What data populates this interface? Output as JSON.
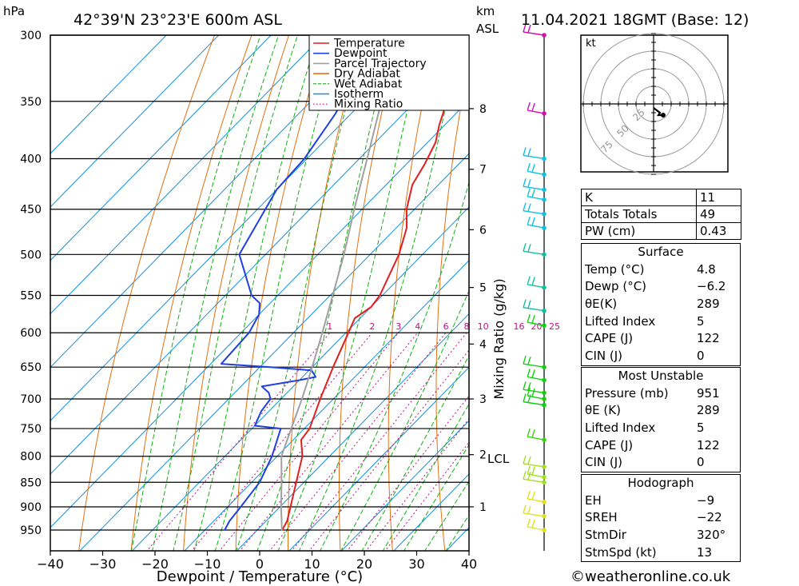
{
  "header": {
    "hpa_unit": "hPa",
    "location": "42°39'N 23°23'E 600m ASL",
    "km_unit": "km",
    "asl": "ASL",
    "datetime": "11.04.2021 18GMT (Base: 12)"
  },
  "footer": {
    "copyright": "©weatheronline.co.uk"
  },
  "chart_data": {
    "type": "line",
    "title": "42°39'N 23°23'E 600m ASL",
    "xlabel": "Dewpoint / Temperature (°C)",
    "ylabel": "hPa",
    "right_label": "Mixing Ratio (g/kg)",
    "xlim": [
      -40,
      40
    ],
    "ylim": [
      300,
      950
    ],
    "x_ticks": [
      -40,
      -30,
      -20,
      -10,
      0,
      10,
      20,
      30,
      40
    ],
    "x_tick_labels": [
      "−40",
      "−30",
      "−20",
      "−10",
      "0",
      "10",
      "20",
      "30",
      "40"
    ],
    "pressure_levels": [
      300,
      350,
      400,
      450,
      500,
      550,
      600,
      650,
      700,
      750,
      800,
      850,
      900,
      950
    ],
    "km_ticks": [
      {
        "km": 1,
        "p": 900
      },
      {
        "km": 2,
        "p": 797
      },
      {
        "km": 3,
        "p": 700
      },
      {
        "km": 4,
        "p": 616
      },
      {
        "km": 5,
        "p": 540
      },
      {
        "km": 6,
        "p": 472
      },
      {
        "km": 7,
        "p": 410
      },
      {
        "km": 8,
        "p": 356
      }
    ],
    "lcl_label": "LCL",
    "lcl_pressure": 800,
    "mixing_ratio_labels": [
      "1",
      "2",
      "3",
      "4",
      "6",
      "8",
      "10",
      "16",
      "20",
      "25"
    ],
    "mixing_ratio_values": [
      1,
      2,
      3,
      4,
      6,
      8,
      10,
      16,
      20,
      25
    ],
    "legend": [
      {
        "name": "Temperature",
        "color": "#e02020",
        "style": "solid"
      },
      {
        "name": "Dewpoint",
        "color": "#2040e0",
        "style": "solid"
      },
      {
        "name": "Parcel Trajectory",
        "color": "#a0a0a0",
        "style": "solid"
      },
      {
        "name": "Dry Adiabat",
        "color": "#e07010",
        "style": "solid"
      },
      {
        "name": "Wet Adiabat",
        "color": "#10b010",
        "style": "dashed"
      },
      {
        "name": "Isotherm",
        "color": "#1090e0",
        "style": "solid"
      },
      {
        "name": "Mixing Ratio",
        "color": "#c01080",
        "style": "dotted"
      }
    ],
    "series": [
      {
        "name": "Temperature",
        "color": "#e02020",
        "points": [
          [
            951,
            4.8
          ],
          [
            930,
            4.0
          ],
          [
            900,
            2.0
          ],
          [
            850,
            -1.5
          ],
          [
            800,
            -5.2
          ],
          [
            770,
            -8.5
          ],
          [
            750,
            -9.0
          ],
          [
            700,
            -12.5
          ],
          [
            650,
            -16.0
          ],
          [
            600,
            -19.5
          ],
          [
            580,
            -21.0
          ],
          [
            565,
            -20.0
          ],
          [
            550,
            -20.5
          ],
          [
            500,
            -24.5
          ],
          [
            470,
            -28.0
          ],
          [
            450,
            -31.5
          ],
          [
            425,
            -35.0
          ],
          [
            405,
            -36.5
          ],
          [
            385,
            -38.5
          ],
          [
            370,
            -41.0
          ],
          [
            350,
            -44.0
          ],
          [
            330,
            -45.0
          ],
          [
            310,
            -46.0
          ],
          [
            300,
            -47.0
          ]
        ]
      },
      {
        "name": "Dewpoint",
        "color": "#2040e0",
        "points": [
          [
            951,
            -6.2
          ],
          [
            930,
            -7.0
          ],
          [
            900,
            -7.5
          ],
          [
            850,
            -8.5
          ],
          [
            800,
            -11.0
          ],
          [
            750,
            -14.5
          ],
          [
            745,
            -20.0
          ],
          [
            720,
            -21.5
          ],
          [
            700,
            -22.0
          ],
          [
            690,
            -23.5
          ],
          [
            680,
            -26.0
          ],
          [
            670,
            -20.0
          ],
          [
            665,
            -17.5
          ],
          [
            655,
            -19.5
          ],
          [
            650,
            -28.0
          ],
          [
            645,
            -38.0
          ],
          [
            600,
            -38.5
          ],
          [
            575,
            -40.0
          ],
          [
            560,
            -42.0
          ],
          [
            550,
            -45.0
          ],
          [
            500,
            -55.0
          ],
          [
            430,
            -60.0
          ],
          [
            400,
            -60.5
          ],
          [
            360,
            -63.0
          ],
          [
            330,
            -66.0
          ],
          [
            310,
            -68.0
          ],
          [
            300,
            -69.0
          ]
        ]
      },
      {
        "name": "Parcel Trajectory",
        "color": "#a0a0a0",
        "points": [
          [
            951,
            4.8
          ],
          [
            900,
            0.2
          ],
          [
            850,
            -4.3
          ],
          [
            800,
            -9.2
          ],
          [
            750,
            -12.5
          ],
          [
            700,
            -16.0
          ],
          [
            650,
            -20.0
          ],
          [
            600,
            -24.5
          ],
          [
            550,
            -29.5
          ],
          [
            500,
            -35.0
          ],
          [
            450,
            -41.5
          ],
          [
            400,
            -48.5
          ],
          [
            350,
            -56.5
          ],
          [
            300,
            -65.5
          ]
        ]
      }
    ],
    "winds": [
      {
        "p": 300,
        "color": "#d010b0"
      },
      {
        "p": 360,
        "color": "#d010b0"
      },
      {
        "p": 400,
        "color": "#10c0e0"
      },
      {
        "p": 415,
        "color": "#10c0e0"
      },
      {
        "p": 430,
        "color": "#10c0e0"
      },
      {
        "p": 440,
        "color": "#10c0e0"
      },
      {
        "p": 455,
        "color": "#10c0e0"
      },
      {
        "p": 470,
        "color": "#10c0e0"
      },
      {
        "p": 500,
        "color": "#10c0a0"
      },
      {
        "p": 540,
        "color": "#10c0a0"
      },
      {
        "p": 570,
        "color": "#10c0a0"
      },
      {
        "p": 590,
        "color": "#10d010"
      },
      {
        "p": 650,
        "color": "#10d010"
      },
      {
        "p": 670,
        "color": "#10d010"
      },
      {
        "p": 690,
        "color": "#10d010"
      },
      {
        "p": 700,
        "color": "#10d010"
      },
      {
        "p": 710,
        "color": "#10d010"
      },
      {
        "p": 770,
        "color": "#40d010"
      },
      {
        "p": 820,
        "color": "#a0e020"
      },
      {
        "p": 840,
        "color": "#a0e020"
      },
      {
        "p": 850,
        "color": "#a0e020"
      },
      {
        "p": 890,
        "color": "#e0e020"
      },
      {
        "p": 920,
        "color": "#e0e020"
      },
      {
        "p": 950,
        "color": "#e0e020"
      }
    ]
  },
  "hodograph": {
    "unit_label": "kt",
    "ring_labels": [
      "25",
      "50",
      "75"
    ]
  },
  "indices": [
    {
      "label": "K",
      "value": "11"
    },
    {
      "label": "Totals Totals",
      "value": "49"
    },
    {
      "label": "PW (cm)",
      "value": "0.43"
    }
  ],
  "surface": {
    "title": "Surface",
    "rows": [
      {
        "label": "Temp (°C)",
        "value": "4.8"
      },
      {
        "label": "Dewp (°C)",
        "value": "−6.2"
      },
      {
        "label": "θE(K)",
        "value": "289"
      },
      {
        "label": "Lifted Index",
        "value": "5"
      },
      {
        "label": "CAPE (J)",
        "value": "122"
      },
      {
        "label": "CIN (J)",
        "value": "0"
      }
    ]
  },
  "most_unstable": {
    "title": "Most Unstable",
    "rows": [
      {
        "label": "Pressure (mb)",
        "value": "951"
      },
      {
        "label": "θE (K)",
        "value": "289"
      },
      {
        "label": "Lifted Index",
        "value": "5"
      },
      {
        "label": "CAPE (J)",
        "value": "122"
      },
      {
        "label": "CIN (J)",
        "value": "0"
      }
    ]
  },
  "hodograph_table": {
    "title": "Hodograph",
    "rows": [
      {
        "label": "EH",
        "value": "−9"
      },
      {
        "label": "SREH",
        "value": "−22"
      },
      {
        "label": "StmDir",
        "value": "320°"
      },
      {
        "label": "StmSpd (kt)",
        "value": "13"
      }
    ]
  }
}
